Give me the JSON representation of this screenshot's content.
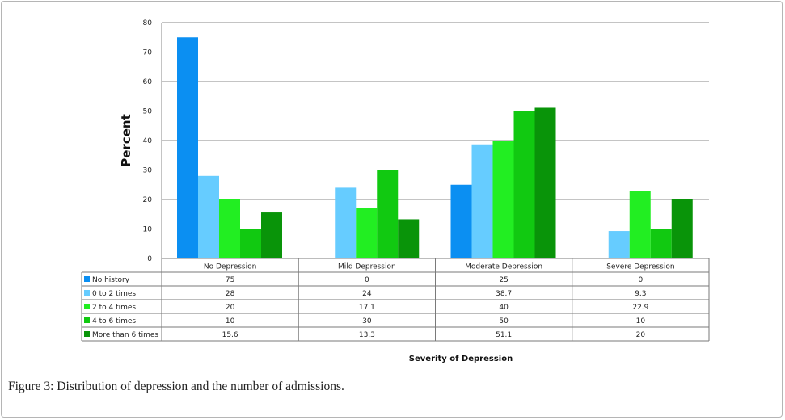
{
  "chart_data": {
    "type": "bar",
    "title": "",
    "ylabel": "Percent",
    "xlabel": "Severity of Depression",
    "ylim": [
      0,
      80
    ],
    "yticks": [
      0,
      10,
      20,
      30,
      40,
      50,
      60,
      70,
      80
    ],
    "grid": true,
    "legend": "data-table-left",
    "categories": [
      "No Depression",
      "Mild Depression",
      "Moderate Depression",
      "Severe Depression"
    ],
    "series": [
      {
        "name": "No history",
        "color": "#0b8ff2",
        "values": [
          75,
          0,
          25,
          0
        ],
        "labels": [
          "75",
          "0",
          "25",
          "0"
        ]
      },
      {
        "name": "0 to 2 times",
        "color": "#66ccff",
        "values": [
          28,
          24,
          38.7,
          9.3
        ],
        "labels": [
          "28",
          "24",
          "38.7",
          "9.3"
        ]
      },
      {
        "name": "2 to 4 times",
        "color": "#22ee22",
        "values": [
          20,
          17.1,
          40,
          22.9
        ],
        "labels": [
          "20",
          "17.1",
          "40",
          "22.9"
        ]
      },
      {
        "name": "4 to 6 times",
        "color": "#11c911",
        "values": [
          10,
          30,
          50,
          10
        ],
        "labels": [
          "10",
          "30",
          "50",
          "10"
        ]
      },
      {
        "name": "More than 6 times",
        "color": "#099409",
        "values": [
          15.6,
          13.3,
          51.1,
          20
        ],
        "labels": [
          "15.6",
          "13.3",
          "51.1",
          "20"
        ]
      }
    ]
  },
  "caption": {
    "label": "Figure 3:",
    "text": " Distribution of depression and the number of admissions."
  }
}
